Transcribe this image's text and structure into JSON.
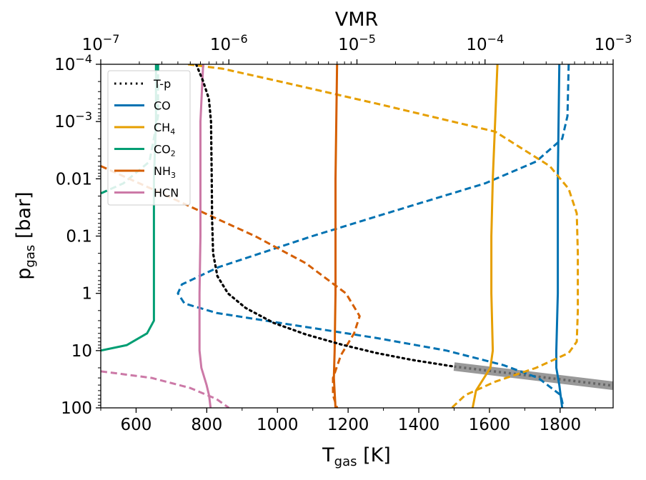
{
  "chart_data": {
    "type": "line",
    "title": "",
    "xlabel": {
      "main": "T",
      "sub": "gas",
      "unit": " [K]"
    },
    "ylabel": {
      "main": "p",
      "sub": "gas",
      "unit": " [bar]"
    },
    "x2label": "VMR",
    "xlim": [
      500,
      1950
    ],
    "ylim": [
      100,
      0.0001
    ],
    "yscale": "log",
    "x2lim": [
      1e-07,
      0.001
    ],
    "x2scale": "log",
    "xticks": [
      {
        "v": 600,
        "label": "600"
      },
      {
        "v": 800,
        "label": "800"
      },
      {
        "v": 1000,
        "label": "1000"
      },
      {
        "v": 1200,
        "label": "1200"
      },
      {
        "v": 1400,
        "label": "1400"
      },
      {
        "v": 1600,
        "label": "1600"
      },
      {
        "v": 1800,
        "label": "1800"
      }
    ],
    "yticks": [
      {
        "v": 0.0001,
        "base": "10",
        "exp": "−4"
      },
      {
        "v": 0.001,
        "base": "10",
        "exp": "−3"
      },
      {
        "v": 0.01,
        "base": "0.01",
        "exp": ""
      },
      {
        "v": 0.1,
        "base": "0.1",
        "exp": ""
      },
      {
        "v": 1,
        "base": "1",
        "exp": ""
      },
      {
        "v": 10,
        "base": "10",
        "exp": ""
      },
      {
        "v": 100,
        "base": "100",
        "exp": ""
      }
    ],
    "x2ticks": [
      {
        "v": 1e-07,
        "base": "10",
        "exp": "−7"
      },
      {
        "v": 1e-06,
        "base": "10",
        "exp": "−6"
      },
      {
        "v": 1e-05,
        "base": "10",
        "exp": "−5"
      },
      {
        "v": 0.0001,
        "base": "10",
        "exp": "−4"
      },
      {
        "v": 0.001,
        "base": "10",
        "exp": "−3"
      }
    ],
    "legend": {
      "position": "upper-left",
      "entries": [
        {
          "label": "T-p",
          "sub": "",
          "color": "#000000",
          "style": "dotted"
        },
        {
          "label": "CO",
          "sub": "",
          "color": "#0072b2",
          "style": "solid"
        },
        {
          "label": "CH",
          "sub": "4",
          "color": "#e69f00",
          "style": "solid"
        },
        {
          "label": "CO",
          "sub": "2",
          "color": "#009e73",
          "style": "solid"
        },
        {
          "label": "NH",
          "sub": "3",
          "color": "#d55e00",
          "style": "solid"
        },
        {
          "label": "HCN",
          "sub": "",
          "color": "#cc79a7",
          "style": "solid"
        }
      ]
    },
    "tp_profile": {
      "name": "T-p",
      "color": "#000000",
      "style": "dotted",
      "points": [
        [
          770,
          0.0001
        ],
        [
          790,
          0.0002
        ],
        [
          806,
          0.0004
        ],
        [
          812,
          0.001
        ],
        [
          814,
          0.01
        ],
        [
          815,
          0.05
        ],
        [
          818,
          0.2
        ],
        [
          830,
          0.5
        ],
        [
          860,
          1.0
        ],
        [
          910,
          1.8
        ],
        [
          990,
          3.3
        ],
        [
          1080,
          5.2
        ],
        [
          1180,
          7.8
        ],
        [
          1280,
          11
        ],
        [
          1380,
          14.5
        ],
        [
          1500,
          19
        ]
      ]
    },
    "tp_extension": {
      "color": "#999999",
      "dash_color": "#666666",
      "points": [
        [
          1500,
          19
        ],
        [
          1950,
          41
        ]
      ]
    },
    "vmr_series": [
      {
        "name": "CO",
        "color": "#0072b2",
        "style": "solid",
        "points": [
          [
            0.00038,
            0.0001
          ],
          [
            0.00037,
            0.01
          ],
          [
            0.00037,
            1
          ],
          [
            0.00036,
            10
          ],
          [
            0.00036,
            20
          ],
          [
            0.00038,
            40
          ],
          [
            0.0004,
            100
          ]
        ]
      },
      {
        "name": "CO",
        "color": "#0072b2",
        "style": "dashed",
        "points": [
          [
            0.00045,
            0.0001
          ],
          [
            0.00044,
            0.0008
          ],
          [
            0.0004,
            0.002
          ],
          [
            0.00025,
            0.005
          ],
          [
            0.0001,
            0.012
          ],
          [
            2.6e-05,
            0.03
          ],
          [
            4.5e-06,
            0.1
          ],
          [
            8.3e-07,
            0.35
          ],
          [
            4.3e-07,
            0.7
          ],
          [
            4e-07,
            1.0
          ],
          [
            4.5e-07,
            1.5
          ],
          [
            8e-07,
            2.2
          ],
          [
            3e-06,
            3.5
          ],
          [
            1.4e-05,
            6
          ],
          [
            5e-05,
            10
          ],
          [
            0.00014,
            18
          ],
          [
            0.00026,
            30
          ],
          [
            0.00039,
            60
          ],
          [
            0.00041,
            100
          ]
        ]
      },
      {
        "name": "CH4",
        "color": "#e69f00",
        "style": "solid",
        "points": [
          [
            0.000125,
            0.0001
          ],
          [
            0.00012,
            0.001
          ],
          [
            0.000115,
            0.01
          ],
          [
            0.000112,
            0.1
          ],
          [
            0.000112,
            1
          ],
          [
            0.000115,
            10
          ],
          [
            0.00011,
            20
          ],
          [
            8.5e-05,
            50
          ],
          [
            8e-05,
            100
          ]
        ]
      },
      {
        "name": "CH4",
        "color": "#e69f00",
        "style": "dashed",
        "points": [
          [
            4.8e-07,
            0.0001
          ],
          [
            9e-07,
            0.00012
          ],
          [
            2.5e-06,
            0.0002
          ],
          [
            1.5e-05,
            0.0005
          ],
          [
            0.00012,
            0.0015
          ],
          [
            0.00032,
            0.006
          ],
          [
            0.00045,
            0.015
          ],
          [
            0.00052,
            0.04
          ],
          [
            0.00053,
            0.2
          ],
          [
            0.00053,
            2
          ],
          [
            0.00052,
            7
          ],
          [
            0.00045,
            11
          ],
          [
            0.00025,
            20
          ],
          [
            0.00012,
            35
          ],
          [
            7e-05,
            60
          ],
          [
            5.5e-05,
            100
          ]
        ]
      },
      {
        "name": "CO2",
        "color": "#009e73",
        "style": "solid",
        "points": [
          [
            2.7e-07,
            0.0001
          ],
          [
            2.7e-07,
            0.001
          ],
          [
            2.6e-07,
            0.01
          ],
          [
            2.6e-07,
            0.1
          ],
          [
            2.6e-07,
            1
          ],
          [
            2.6e-07,
            3
          ],
          [
            2.3e-07,
            5
          ],
          [
            1.6e-07,
            8
          ],
          [
            1e-07,
            10
          ]
        ]
      },
      {
        "name": "CO2",
        "color": "#009e73",
        "style": "dashed",
        "points": [
          [
            2.8e-07,
            0.0001
          ],
          [
            2.8e-07,
            0.0008
          ],
          [
            2.4e-07,
            0.005
          ],
          [
            1.5e-07,
            0.012
          ],
          [
            1e-07,
            0.018
          ]
        ]
      },
      {
        "name": "NH3",
        "color": "#d55e00",
        "style": "solid",
        "points": [
          [
            7e-06,
            0.0001
          ],
          [
            6.9e-06,
            0.001
          ],
          [
            6.8e-06,
            0.01
          ],
          [
            6.8e-06,
            0.1
          ],
          [
            6.8e-06,
            1
          ],
          [
            6.7e-06,
            10
          ],
          [
            6.6e-06,
            30
          ],
          [
            6.8e-06,
            100
          ]
        ]
      },
      {
        "name": "NH3",
        "color": "#d55e00",
        "style": "dashed",
        "points": [
          [
            1e-07,
            0.006
          ],
          [
            2.5e-07,
            0.015
          ],
          [
            6.5e-07,
            0.04
          ],
          [
            1.6e-06,
            0.1
          ],
          [
            4e-06,
            0.3
          ],
          [
            8.2e-06,
            1.0
          ],
          [
            1.05e-05,
            2.5
          ],
          [
            9.5e-06,
            5
          ],
          [
            7.5e-06,
            12
          ],
          [
            6.5e-06,
            30
          ],
          [
            6.5e-06,
            60
          ],
          [
            7e-06,
            100
          ]
        ]
      },
      {
        "name": "HCN",
        "color": "#cc79a7",
        "style": "solid",
        "points": [
          [
            6.3e-07,
            0.0001
          ],
          [
            6e-07,
            0.001
          ],
          [
            6e-07,
            0.1
          ],
          [
            5.9e-07,
            1
          ],
          [
            5.9e-07,
            10
          ],
          [
            6.1e-07,
            20
          ],
          [
            6.7e-07,
            40
          ],
          [
            7e-07,
            60
          ],
          [
            7.2e-07,
            100
          ]
        ]
      },
      {
        "name": "HCN",
        "color": "#cc79a7",
        "style": "dashed",
        "points": [
          [
            1e-07,
            23
          ],
          [
            2.5e-07,
            30
          ],
          [
            5e-07,
            45
          ],
          [
            8e-07,
            70
          ],
          [
            1e-06,
            100
          ]
        ]
      }
    ]
  }
}
